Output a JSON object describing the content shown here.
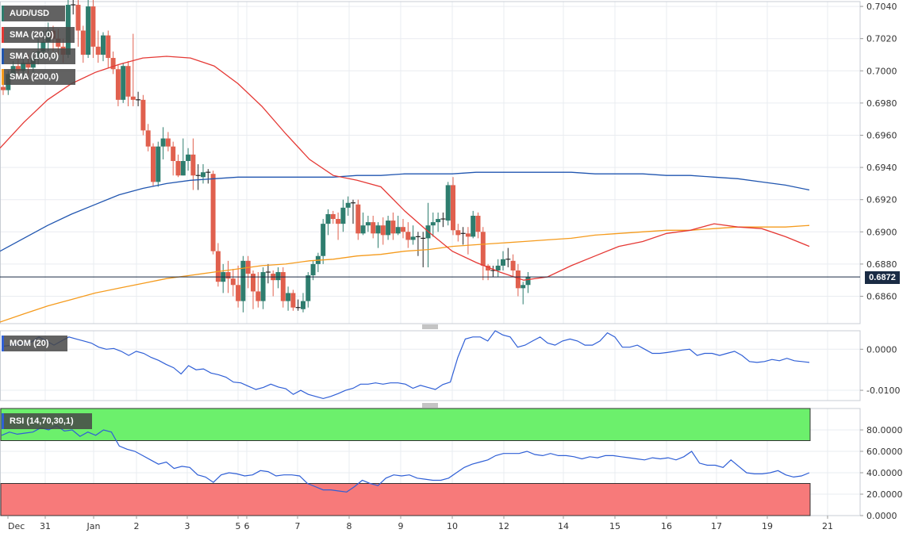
{
  "instrument": "AUD/USD",
  "colors": {
    "up": "#2e7d6e",
    "down": "#e0604e",
    "sma20": "#e53935",
    "sma100": "#2156b0",
    "sma200": "#f59b1d",
    "mom": "#2f5fd6",
    "rsi": "#2f5fd6",
    "rsi_overbought_zone": "#6cf06c",
    "rsi_oversold_zone": "#f77a7a",
    "price_line": "#1a2b44"
  },
  "legend": {
    "title": "AUD/USD",
    "sma20": "SMA (20,0)",
    "sma100": "SMA (100,0)",
    "sma200": "SMA (200,0)",
    "mom": "MOM (20)",
    "rsi": "RSI (14,70,30,1)"
  },
  "current_price_label": "0.6872",
  "chart_data": [
    {
      "type": "candlestick",
      "title": "AUD/USD",
      "ylim": [
        0.6843,
        0.7043
      ],
      "y_ticks": [
        "0.7040",
        "0.7020",
        "0.7000",
        "0.6980",
        "0.6960",
        "0.6940",
        "0.6920",
        "0.6900",
        "0.6880",
        "0.6860"
      ],
      "x_ticks": [
        "Dec",
        "31",
        "Jan",
        "2",
        "3",
        "5",
        "6",
        "7",
        "8",
        "9",
        "10",
        "12",
        "14",
        "15",
        "16",
        "17",
        "19",
        "21"
      ],
      "current_price": 0.6872,
      "candles": [
        [
          0.699,
          0.6988,
          0.6995,
          0.6985
        ],
        [
          0.6988,
          0.6998,
          0.7,
          0.6985
        ],
        [
          0.6998,
          0.7003,
          0.7006,
          0.6995
        ],
        [
          0.7003,
          0.7,
          0.7008,
          0.6996
        ],
        [
          0.7,
          0.7005,
          0.701,
          0.6996
        ],
        [
          0.7005,
          0.7002,
          0.701,
          0.6998
        ],
        [
          0.7002,
          0.7008,
          0.7012,
          0.6999
        ],
        [
          0.7008,
          0.7012,
          0.702,
          0.7004
        ],
        [
          0.7012,
          0.7018,
          0.7025,
          0.7008
        ],
        [
          0.7018,
          0.7025,
          0.703,
          0.7012
        ],
        [
          0.7025,
          0.702,
          0.7028,
          0.7012
        ],
        [
          0.702,
          0.7015,
          0.7026,
          0.701
        ],
        [
          0.7015,
          0.701,
          0.702,
          0.7005
        ],
        [
          0.701,
          0.7041,
          0.7044,
          0.7008
        ],
        [
          0.7041,
          0.7041,
          0.7044,
          0.7035
        ],
        [
          0.7041,
          0.7025,
          0.7044,
          0.7015
        ],
        [
          0.7025,
          0.701,
          0.7028,
          0.7005
        ],
        [
          0.701,
          0.704,
          0.7044,
          0.7008
        ],
        [
          0.704,
          0.7015,
          0.7044,
          0.7008
        ],
        [
          0.7015,
          0.701,
          0.7025,
          0.7005
        ],
        [
          0.701,
          0.7022,
          0.7024,
          0.7006
        ],
        [
          0.7022,
          0.7008,
          0.7025,
          0.7002
        ],
        [
          0.7008,
          0.7001,
          0.7012,
          0.6998
        ],
        [
          0.7001,
          0.6982,
          0.7004,
          0.6978
        ],
        [
          0.6982,
          0.7003,
          0.7005,
          0.698
        ],
        [
          0.7003,
          0.6984,
          0.7006,
          0.6978
        ],
        [
          0.6984,
          0.6982,
          0.7023,
          0.6978
        ],
        [
          0.6982,
          0.6982,
          0.6987,
          0.6978
        ],
        [
          0.6982,
          0.6963,
          0.6985,
          0.696
        ],
        [
          0.6963,
          0.6953,
          0.6967,
          0.695
        ],
        [
          0.6953,
          0.6931,
          0.6955,
          0.6928
        ],
        [
          0.6931,
          0.6953,
          0.6956,
          0.6928
        ],
        [
          0.6953,
          0.6958,
          0.6965,
          0.6945
        ],
        [
          0.6958,
          0.6953,
          0.6962,
          0.695
        ],
        [
          0.6953,
          0.6944,
          0.6956,
          0.6935
        ],
        [
          0.6944,
          0.6935,
          0.6948,
          0.6934
        ],
        [
          0.6935,
          0.6944,
          0.6958,
          0.6935
        ],
        [
          0.6944,
          0.6948,
          0.6952,
          0.6938
        ],
        [
          0.6948,
          0.6935,
          0.6958,
          0.6926
        ],
        [
          0.6935,
          0.6934,
          0.6942,
          0.6926
        ],
        [
          0.6934,
          0.6937,
          0.6942,
          0.693
        ],
        [
          0.6937,
          0.6936,
          0.6939,
          0.693
        ],
        [
          0.6936,
          0.6888,
          0.6938,
          0.6886
        ],
        [
          0.6888,
          0.6869,
          0.6893,
          0.6866
        ],
        [
          0.6869,
          0.6875,
          0.688,
          0.6862
        ],
        [
          0.6875,
          0.6871,
          0.6882,
          0.6862
        ],
        [
          0.6871,
          0.6867,
          0.6877,
          0.686
        ],
        [
          0.6867,
          0.6857,
          0.6879,
          0.6853
        ],
        [
          0.6857,
          0.6882,
          0.6885,
          0.685
        ],
        [
          0.6882,
          0.6874,
          0.6885,
          0.6865
        ],
        [
          0.6874,
          0.6863,
          0.6876,
          0.6852
        ],
        [
          0.6863,
          0.6857,
          0.6875,
          0.6853
        ],
        [
          0.6857,
          0.6875,
          0.6878,
          0.6852
        ],
        [
          0.6875,
          0.6874,
          0.688,
          0.6868
        ],
        [
          0.6874,
          0.687,
          0.6876,
          0.686
        ],
        [
          0.687,
          0.6875,
          0.6878,
          0.6865
        ],
        [
          0.6875,
          0.6857,
          0.6878,
          0.6853
        ],
        [
          0.6857,
          0.6862,
          0.6866,
          0.6851
        ],
        [
          0.6862,
          0.6853,
          0.6864,
          0.6851
        ],
        [
          0.6853,
          0.6852,
          0.6858,
          0.6851
        ],
        [
          0.6852,
          0.6857,
          0.6862,
          0.685
        ],
        [
          0.6857,
          0.6873,
          0.6875,
          0.6853
        ],
        [
          0.6873,
          0.688,
          0.6882,
          0.687
        ],
        [
          0.688,
          0.6885,
          0.6887,
          0.6875
        ],
        [
          0.6885,
          0.6905,
          0.6908,
          0.688
        ],
        [
          0.6905,
          0.6911,
          0.6914,
          0.6898
        ],
        [
          0.6911,
          0.6908,
          0.6913,
          0.6905
        ],
        [
          0.6908,
          0.6905,
          0.6912,
          0.6895
        ],
        [
          0.6905,
          0.6915,
          0.692,
          0.69
        ],
        [
          0.6915,
          0.6918,
          0.6922,
          0.691
        ],
        [
          0.6918,
          0.6917,
          0.692,
          0.6905
        ],
        [
          0.6917,
          0.6899,
          0.692,
          0.6895
        ],
        [
          0.6899,
          0.6904,
          0.6912,
          0.6898
        ],
        [
          0.6904,
          0.6906,
          0.691,
          0.69
        ],
        [
          0.6906,
          0.6899,
          0.691,
          0.6896
        ],
        [
          0.6899,
          0.6904,
          0.6906,
          0.689
        ],
        [
          0.6904,
          0.6898,
          0.6909,
          0.6892
        ],
        [
          0.6898,
          0.6907,
          0.691,
          0.6895
        ],
        [
          0.6907,
          0.6899,
          0.6912,
          0.6895
        ],
        [
          0.6899,
          0.6903,
          0.691,
          0.6898
        ],
        [
          0.6903,
          0.69,
          0.6908,
          0.6896
        ],
        [
          0.69,
          0.6895,
          0.6906,
          0.689
        ],
        [
          0.6895,
          0.6897,
          0.6904,
          0.6892
        ],
        [
          0.6897,
          0.6896,
          0.69,
          0.6885
        ],
        [
          0.6896,
          0.6896,
          0.69,
          0.6878
        ],
        [
          0.6896,
          0.6904,
          0.6918,
          0.6878
        ],
        [
          0.6904,
          0.6906,
          0.6912,
          0.6897
        ],
        [
          0.6906,
          0.6908,
          0.6912,
          0.69
        ],
        [
          0.6908,
          0.6907,
          0.6912,
          0.6903
        ],
        [
          0.6907,
          0.6929,
          0.6931,
          0.6904
        ],
        [
          0.6929,
          0.6901,
          0.6934,
          0.6898
        ],
        [
          0.6901,
          0.6898,
          0.6905,
          0.6894
        ],
        [
          0.6898,
          0.6899,
          0.6903,
          0.6892
        ],
        [
          0.6899,
          0.6897,
          0.6903,
          0.6886
        ],
        [
          0.6897,
          0.691,
          0.6913,
          0.6896
        ],
        [
          0.691,
          0.69,
          0.6912,
          0.6896
        ],
        [
          0.69,
          0.6879,
          0.6903,
          0.687
        ],
        [
          0.6879,
          0.6876,
          0.688,
          0.687
        ],
        [
          0.6876,
          0.6876,
          0.6879,
          0.6872
        ],
        [
          0.6876,
          0.6879,
          0.6883,
          0.6872
        ],
        [
          0.6879,
          0.6883,
          0.6888,
          0.6876
        ],
        [
          0.6883,
          0.6882,
          0.689,
          0.6878
        ],
        [
          0.6882,
          0.6876,
          0.6886,
          0.6872
        ],
        [
          0.6876,
          0.6865,
          0.688,
          0.686
        ],
        [
          0.6865,
          0.6867,
          0.6869,
          0.6855
        ],
        [
          0.6867,
          0.6872,
          0.6875,
          0.6862
        ]
      ],
      "sma20": [
        0.6952,
        0.6968,
        0.6982,
        0.6992,
        0.6999,
        0.7004,
        0.7008,
        0.7009,
        0.7008,
        0.7003,
        0.6992,
        0.6978,
        0.6961,
        0.6945,
        0.6935,
        0.6932,
        0.6928,
        0.6913,
        0.69,
        0.6888,
        0.6881,
        0.6875,
        0.687,
        0.6872,
        0.6879,
        0.6885,
        0.6891,
        0.6894,
        0.6899,
        0.6901,
        0.6905,
        0.6903,
        0.6902,
        0.6897,
        0.6891
      ],
      "sma100": [
        0.6888,
        0.6896,
        0.6904,
        0.6911,
        0.6917,
        0.6923,
        0.6927,
        0.693,
        0.6932,
        0.6933,
        0.6934,
        0.6934,
        0.6934,
        0.6934,
        0.6934,
        0.6935,
        0.6935,
        0.6936,
        0.6936,
        0.6936,
        0.6937,
        0.6937,
        0.6937,
        0.6937,
        0.6937,
        0.6936,
        0.6936,
        0.6936,
        0.6935,
        0.6935,
        0.6934,
        0.6933,
        0.6931,
        0.6929,
        0.6926
      ],
      "sma200": [
        0.6844,
        0.6849,
        0.6854,
        0.6858,
        0.6862,
        0.6865,
        0.6868,
        0.6871,
        0.6873,
        0.6875,
        0.6877,
        0.6879,
        0.688,
        0.6882,
        0.6883,
        0.6885,
        0.6886,
        0.6888,
        0.6889,
        0.6891,
        0.6892,
        0.6893,
        0.6894,
        0.6895,
        0.6896,
        0.6898,
        0.6899,
        0.69,
        0.6901,
        0.6901,
        0.6902,
        0.6903,
        0.6903,
        0.6903,
        0.6904
      ]
    },
    {
      "type": "line",
      "title": "MOM (20)",
      "ylim": [
        -0.0125,
        0.0045
      ],
      "y_ticks": [
        "0.0000",
        "-0.0100"
      ],
      "values": [
        0.0007,
        0.0009,
        0.0012,
        0.0015,
        0.0018,
        0.003,
        0.002,
        0.001,
        0.002,
        0.003,
        0.0025,
        0.002,
        0.0015,
        0.0005,
        0.0,
        0.0002,
        -0.0005,
        -0.0015,
        -0.0005,
        -0.001,
        -0.002,
        -0.0027,
        -0.0037,
        -0.0045,
        -0.006,
        -0.004,
        -0.005,
        -0.0048,
        -0.0058,
        -0.0062,
        -0.0068,
        -0.008,
        -0.0082,
        -0.009,
        -0.0098,
        -0.0093,
        -0.0085,
        -0.0092,
        -0.0096,
        -0.011,
        -0.01,
        -0.011,
        -0.0115,
        -0.012,
        -0.0115,
        -0.0108,
        -0.01,
        -0.0095,
        -0.0085,
        -0.0085,
        -0.0082,
        -0.0085,
        -0.0082,
        -0.0082,
        -0.0085,
        -0.0095,
        -0.0088,
        -0.0093,
        -0.0098,
        -0.0086,
        -0.008,
        -0.002,
        0.0025,
        0.003,
        0.003,
        0.002,
        0.0045,
        0.0035,
        0.003,
        0.0005,
        0.001,
        0.002,
        0.003,
        0.0015,
        0.001,
        0.002,
        0.0025,
        0.002,
        0.001,
        0.001,
        0.002,
        0.004,
        0.003,
        0.0005,
        0.0005,
        0.001,
        0.0,
        -0.001,
        -0.001,
        -0.0008,
        -0.0005,
        -0.0002,
        0.0,
        -0.0015,
        -0.001,
        -0.001,
        -0.0015,
        -0.001,
        -0.0005,
        -0.0015,
        -0.003,
        -0.0032,
        -0.003,
        -0.0025,
        -0.0028,
        -0.0022,
        -0.0028,
        -0.003,
        -0.0032
      ]
    },
    {
      "type": "line",
      "title": "RSI (14,70,30,1)",
      "ylim": [
        0,
        100
      ],
      "y_ticks": [
        "80.0000",
        "60.0000",
        "40.0000",
        "20.0000",
        "0.0000"
      ],
      "overbought": 70,
      "oversold": 30,
      "values": [
        75,
        78,
        76,
        77,
        78,
        82,
        80,
        84,
        79,
        80,
        74,
        78,
        75,
        80,
        78,
        65,
        62,
        60,
        56,
        52,
        48,
        50,
        44,
        46,
        45,
        38,
        36,
        31,
        38,
        40,
        39,
        37,
        38,
        42,
        41,
        37,
        38,
        38,
        37,
        30,
        27,
        24,
        24,
        23,
        22,
        27,
        33,
        30,
        28,
        35,
        38,
        37,
        38,
        35,
        34,
        33,
        33,
        35,
        40,
        45,
        48,
        50,
        52,
        56,
        58,
        58,
        58,
        60,
        57,
        56,
        58,
        56,
        56,
        55,
        53,
        55,
        54,
        56,
        56,
        55,
        54,
        53,
        52,
        54,
        53,
        54,
        52,
        55,
        60,
        49,
        47,
        47,
        45,
        52,
        46,
        40,
        39,
        39,
        40,
        42,
        38,
        36,
        37,
        40
      ]
    }
  ]
}
